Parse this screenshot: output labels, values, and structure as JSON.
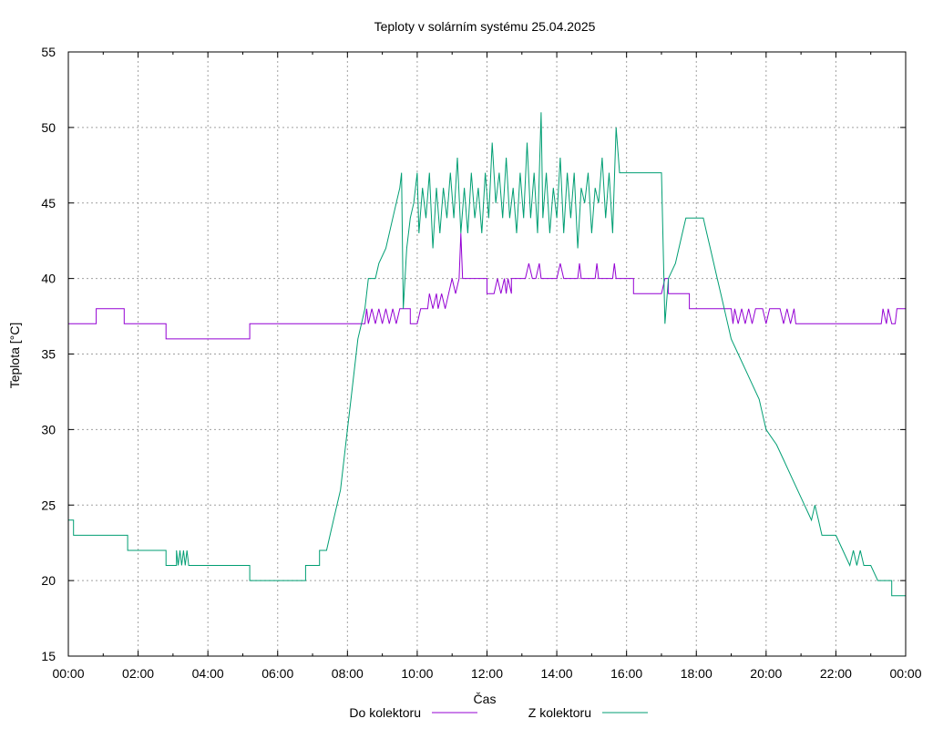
{
  "chart_data": {
    "type": "line",
    "title": "Teploty v solárním systému 25.04.2025",
    "xlabel": "Čas",
    "ylabel": "Teplota [°C]",
    "xlim": [
      0,
      24
    ],
    "ylim": [
      15,
      55
    ],
    "grid": true,
    "legend_position": "bottom",
    "x_ticks": [
      "00:00",
      "02:00",
      "04:00",
      "06:00",
      "08:00",
      "10:00",
      "12:00",
      "14:00",
      "16:00",
      "18:00",
      "20:00",
      "22:00",
      "00:00"
    ],
    "y_ticks": [
      "15",
      "20",
      "25",
      "30",
      "35",
      "40",
      "45",
      "50",
      "55"
    ],
    "series": [
      {
        "name": "Do kolektoru",
        "color": "#9400d3",
        "points": [
          [
            0.0,
            37
          ],
          [
            0.8,
            37
          ],
          [
            0.8,
            38
          ],
          [
            1.6,
            38
          ],
          [
            1.6,
            37
          ],
          [
            2.8,
            37
          ],
          [
            2.8,
            36
          ],
          [
            5.2,
            36
          ],
          [
            5.2,
            37
          ],
          [
            8.5,
            37
          ],
          [
            8.55,
            38
          ],
          [
            8.6,
            37
          ],
          [
            8.7,
            38
          ],
          [
            8.8,
            37
          ],
          [
            8.9,
            38
          ],
          [
            9.0,
            37
          ],
          [
            9.1,
            38
          ],
          [
            9.2,
            37
          ],
          [
            9.3,
            38
          ],
          [
            9.4,
            37
          ],
          [
            9.5,
            38
          ],
          [
            9.8,
            38
          ],
          [
            9.8,
            37
          ],
          [
            10.0,
            37
          ],
          [
            10.1,
            38
          ],
          [
            10.3,
            38
          ],
          [
            10.35,
            39
          ],
          [
            10.45,
            38
          ],
          [
            10.55,
            39
          ],
          [
            10.6,
            38
          ],
          [
            10.7,
            39
          ],
          [
            10.8,
            38
          ],
          [
            10.9,
            39
          ],
          [
            11.0,
            40
          ],
          [
            11.1,
            39
          ],
          [
            11.2,
            40
          ],
          [
            11.25,
            43
          ],
          [
            11.3,
            40
          ],
          [
            12.0,
            40
          ],
          [
            12.0,
            39
          ],
          [
            12.2,
            39
          ],
          [
            12.3,
            40
          ],
          [
            12.4,
            39
          ],
          [
            12.5,
            40
          ],
          [
            12.55,
            39
          ],
          [
            12.6,
            40
          ],
          [
            12.7,
            39
          ],
          [
            12.7,
            40
          ],
          [
            13.1,
            40
          ],
          [
            13.2,
            41
          ],
          [
            13.3,
            40
          ],
          [
            13.4,
            40
          ],
          [
            13.5,
            41
          ],
          [
            13.55,
            40
          ],
          [
            14.0,
            40
          ],
          [
            14.1,
            41
          ],
          [
            14.2,
            40
          ],
          [
            14.6,
            40
          ],
          [
            14.65,
            41
          ],
          [
            14.7,
            40
          ],
          [
            15.1,
            40
          ],
          [
            15.15,
            41
          ],
          [
            15.2,
            40
          ],
          [
            15.6,
            40
          ],
          [
            15.65,
            41
          ],
          [
            15.7,
            40
          ],
          [
            16.2,
            40
          ],
          [
            16.2,
            39
          ],
          [
            17.0,
            39
          ],
          [
            17.1,
            40
          ],
          [
            17.2,
            40
          ],
          [
            17.2,
            39
          ],
          [
            17.8,
            39
          ],
          [
            17.8,
            38
          ],
          [
            19.0,
            38
          ],
          [
            19.05,
            37
          ],
          [
            19.1,
            38
          ],
          [
            19.2,
            37
          ],
          [
            19.3,
            38
          ],
          [
            19.4,
            37
          ],
          [
            19.5,
            38
          ],
          [
            19.6,
            37
          ],
          [
            19.7,
            38
          ],
          [
            19.9,
            38
          ],
          [
            20.0,
            37
          ],
          [
            20.1,
            38
          ],
          [
            20.4,
            38
          ],
          [
            20.5,
            37
          ],
          [
            20.6,
            38
          ],
          [
            20.7,
            37
          ],
          [
            20.8,
            38
          ],
          [
            20.85,
            37
          ],
          [
            23.3,
            37
          ],
          [
            23.35,
            38
          ],
          [
            23.45,
            37
          ],
          [
            23.5,
            38
          ],
          [
            23.6,
            37
          ],
          [
            23.7,
            37
          ],
          [
            23.75,
            38
          ],
          [
            24.0,
            38
          ]
        ]
      },
      {
        "name": "Z kolektoru",
        "color": "#009e73",
        "points": [
          [
            0.0,
            24
          ],
          [
            0.15,
            24
          ],
          [
            0.15,
            23
          ],
          [
            1.7,
            23
          ],
          [
            1.7,
            22
          ],
          [
            2.8,
            22
          ],
          [
            2.8,
            21
          ],
          [
            3.1,
            21
          ],
          [
            3.1,
            22
          ],
          [
            3.15,
            21
          ],
          [
            3.2,
            22
          ],
          [
            3.25,
            21
          ],
          [
            3.3,
            22
          ],
          [
            3.35,
            21
          ],
          [
            3.4,
            22
          ],
          [
            3.45,
            21
          ],
          [
            5.2,
            21
          ],
          [
            5.2,
            20
          ],
          [
            6.8,
            20
          ],
          [
            6.8,
            21
          ],
          [
            7.2,
            21
          ],
          [
            7.2,
            22
          ],
          [
            7.4,
            22
          ],
          [
            7.5,
            23
          ],
          [
            7.6,
            24
          ],
          [
            7.7,
            25
          ],
          [
            7.8,
            26
          ],
          [
            7.9,
            28
          ],
          [
            8.0,
            30
          ],
          [
            8.1,
            32
          ],
          [
            8.2,
            34
          ],
          [
            8.3,
            36
          ],
          [
            8.4,
            37
          ],
          [
            8.5,
            38
          ],
          [
            8.6,
            40
          ],
          [
            8.8,
            40
          ],
          [
            8.9,
            41
          ],
          [
            9.1,
            42
          ],
          [
            9.2,
            43
          ],
          [
            9.3,
            44
          ],
          [
            9.4,
            45
          ],
          [
            9.5,
            46
          ],
          [
            9.55,
            47
          ],
          [
            9.6,
            38
          ],
          [
            9.7,
            42
          ],
          [
            9.8,
            44
          ],
          [
            9.9,
            45
          ],
          [
            10.0,
            47
          ],
          [
            10.05,
            43
          ],
          [
            10.15,
            46
          ],
          [
            10.25,
            44
          ],
          [
            10.35,
            47
          ],
          [
            10.45,
            42
          ],
          [
            10.55,
            46
          ],
          [
            10.65,
            43
          ],
          [
            10.75,
            46
          ],
          [
            10.85,
            44
          ],
          [
            10.95,
            47
          ],
          [
            11.05,
            44
          ],
          [
            11.15,
            48
          ],
          [
            11.25,
            43
          ],
          [
            11.35,
            46
          ],
          [
            11.45,
            43
          ],
          [
            11.55,
            47
          ],
          [
            11.65,
            44
          ],
          [
            11.75,
            46
          ],
          [
            11.85,
            43
          ],
          [
            11.95,
            47
          ],
          [
            12.05,
            44
          ],
          [
            12.15,
            49
          ],
          [
            12.25,
            45
          ],
          [
            12.35,
            47
          ],
          [
            12.45,
            44
          ],
          [
            12.55,
            48
          ],
          [
            12.65,
            44
          ],
          [
            12.75,
            46
          ],
          [
            12.85,
            43
          ],
          [
            12.95,
            47
          ],
          [
            13.05,
            44
          ],
          [
            13.15,
            49
          ],
          [
            13.25,
            44
          ],
          [
            13.35,
            47
          ],
          [
            13.45,
            43
          ],
          [
            13.55,
            51
          ],
          [
            13.6,
            44
          ],
          [
            13.7,
            47
          ],
          [
            13.8,
            43
          ],
          [
            13.9,
            46
          ],
          [
            14.0,
            44
          ],
          [
            14.1,
            48
          ],
          [
            14.2,
            43
          ],
          [
            14.3,
            47
          ],
          [
            14.4,
            44
          ],
          [
            14.5,
            47
          ],
          [
            14.6,
            42
          ],
          [
            14.7,
            46
          ],
          [
            14.8,
            45
          ],
          [
            14.9,
            47
          ],
          [
            15.0,
            43
          ],
          [
            15.1,
            46
          ],
          [
            15.2,
            45
          ],
          [
            15.3,
            48
          ],
          [
            15.4,
            44
          ],
          [
            15.5,
            47
          ],
          [
            15.6,
            43
          ],
          [
            15.7,
            50
          ],
          [
            15.8,
            47
          ],
          [
            17.0,
            47
          ],
          [
            17.1,
            37
          ],
          [
            17.2,
            40
          ],
          [
            17.4,
            41
          ],
          [
            17.5,
            42
          ],
          [
            17.6,
            43
          ],
          [
            17.7,
            44
          ],
          [
            18.2,
            44
          ],
          [
            18.3,
            43
          ],
          [
            18.4,
            42
          ],
          [
            18.5,
            41
          ],
          [
            18.6,
            40
          ],
          [
            18.7,
            39
          ],
          [
            18.8,
            38
          ],
          [
            18.9,
            37
          ],
          [
            19.0,
            36
          ],
          [
            19.2,
            35
          ],
          [
            19.4,
            34
          ],
          [
            19.6,
            33
          ],
          [
            19.8,
            32
          ],
          [
            19.9,
            31
          ],
          [
            20.0,
            30
          ],
          [
            20.3,
            29
          ],
          [
            20.5,
            28
          ],
          [
            20.7,
            27
          ],
          [
            20.9,
            26
          ],
          [
            21.1,
            25
          ],
          [
            21.3,
            24
          ],
          [
            21.4,
            25
          ],
          [
            21.5,
            24
          ],
          [
            21.6,
            23
          ],
          [
            22.0,
            23
          ],
          [
            22.2,
            22
          ],
          [
            22.4,
            21
          ],
          [
            22.5,
            22
          ],
          [
            22.6,
            21
          ],
          [
            22.7,
            22
          ],
          [
            22.8,
            21
          ],
          [
            23.0,
            21
          ],
          [
            23.2,
            20
          ],
          [
            23.6,
            20
          ],
          [
            23.6,
            19
          ],
          [
            24.0,
            19
          ]
        ]
      }
    ]
  }
}
